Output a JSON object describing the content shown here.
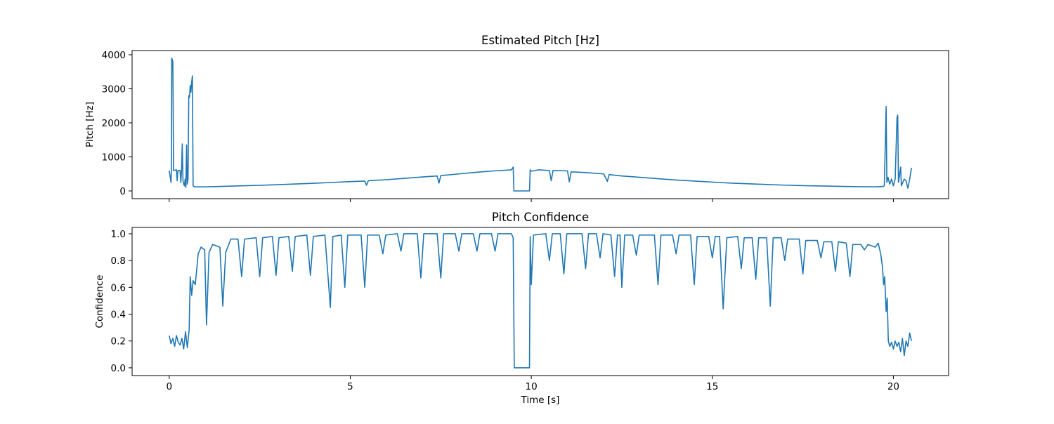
{
  "chart_data": [
    {
      "type": "line",
      "title": "Estimated Pitch [Hz]",
      "y_label": "Pitch [Hz]",
      "x": [
        0,
        0.05,
        0.06,
        0.07,
        0.1,
        0.12,
        0.2,
        0.22,
        0.24,
        0.3,
        0.32,
        0.34,
        0.36,
        0.38,
        0.4,
        0.42,
        0.44,
        0.46,
        0.48,
        0.5,
        0.52,
        0.54,
        0.56,
        0.58,
        0.6,
        0.62,
        0.64,
        0.66,
        0.7,
        1,
        1.5,
        2,
        2.5,
        3,
        3.5,
        4,
        4.5,
        5,
        5.4,
        5.45,
        5.5,
        6,
        6.5,
        7,
        7.4,
        7.45,
        7.5,
        8,
        8.5,
        9,
        9.45,
        9.5,
        9.52,
        9.95,
        9.97,
        10,
        10.2,
        10.5,
        10.55,
        10.6,
        11,
        11.05,
        11.1,
        11.5,
        12,
        12.1,
        12.15,
        12.5,
        13,
        13.5,
        14,
        14.5,
        15,
        15.5,
        16,
        16.5,
        17,
        17.5,
        18,
        18.5,
        19,
        19.5,
        19.7,
        19.75,
        19.8,
        19.82,
        19.85,
        19.9,
        19.95,
        20,
        20.05,
        20.1,
        20.12,
        20.14,
        20.2,
        20.22,
        20.3,
        20.35,
        20.4,
        20.45,
        20.5
      ],
      "series": [
        {
          "color": "#1f77b4",
          "values": [
            600,
            250,
            600,
            3900,
            3800,
            600,
            620,
            300,
            600,
            600,
            250,
            600,
            1380,
            300,
            200,
            150,
            350,
            100,
            1350,
            200,
            350,
            2800,
            2750,
            3100,
            2900,
            3200,
            3380,
            150,
            120,
            120,
            135,
            150,
            165,
            185,
            205,
            225,
            250,
            275,
            290,
            170,
            300,
            330,
            370,
            410,
            440,
            230,
            450,
            500,
            550,
            590,
            620,
            700,
            0,
            0,
            620,
            580,
            620,
            600,
            300,
            600,
            590,
            270,
            560,
            540,
            500,
            280,
            480,
            440,
            400,
            360,
            320,
            290,
            260,
            230,
            210,
            190,
            170,
            155,
            145,
            135,
            125,
            120,
            130,
            150,
            2480,
            250,
            400,
            200,
            350,
            150,
            350,
            2150,
            2230,
            250,
            700,
            150,
            350,
            300,
            80,
            350,
            680
          ]
        }
      ],
      "xlim": [
        -1.025,
        21.525
      ],
      "ylim": [
        -227,
        4124
      ],
      "yticks": [
        0,
        1000,
        2000,
        3000,
        4000
      ]
    },
    {
      "type": "line",
      "title": "Pitch Confidence",
      "y_label": "Confidence",
      "x_label": "Time [s]",
      "x": [
        0,
        0.05,
        0.1,
        0.15,
        0.2,
        0.25,
        0.3,
        0.35,
        0.4,
        0.45,
        0.5,
        0.55,
        0.58,
        0.62,
        0.66,
        0.72,
        0.8,
        0.88,
        0.98,
        1.03,
        1.1,
        1.2,
        1.4,
        1.48,
        1.56,
        1.7,
        1.9,
        2,
        2.08,
        2.4,
        2.5,
        2.58,
        2.85,
        2.95,
        3.03,
        3.3,
        3.4,
        3.48,
        3.8,
        3.9,
        3.98,
        4.3,
        4.45,
        4.52,
        4.75,
        4.85,
        4.93,
        5.3,
        5.4,
        5.48,
        5.8,
        5.9,
        5.98,
        6.3,
        6.4,
        6.48,
        6.85,
        6.95,
        7.03,
        7.4,
        7.5,
        7.58,
        7.9,
        8,
        8.08,
        8.4,
        8.5,
        8.58,
        8.9,
        9,
        9.08,
        9.45,
        9.5,
        9.53,
        9.95,
        9.97,
        10,
        10.06,
        10.4,
        10.5,
        10.58,
        10.8,
        10.9,
        10.98,
        11.4,
        11.5,
        11.58,
        11.8,
        11.9,
        11.98,
        12.2,
        12.3,
        12.38,
        12.45,
        12.5,
        12.58,
        12.8,
        12.9,
        12.98,
        13.4,
        13.5,
        13.58,
        13.9,
        14,
        14.08,
        14.4,
        14.5,
        14.58,
        14.9,
        15,
        15.08,
        15.2,
        15.3,
        15.4,
        15.7,
        15.8,
        15.88,
        16.1,
        16.2,
        16.28,
        16.5,
        16.6,
        16.68,
        16.9,
        17,
        17.08,
        17.4,
        17.5,
        17.58,
        17.9,
        18,
        18.08,
        18.3,
        18.4,
        18.48,
        18.7,
        18.8,
        18.88,
        19.1,
        19.2,
        19.3,
        19.5,
        19.58,
        19.65,
        19.7,
        19.73,
        19.76,
        19.8,
        19.83,
        19.86,
        19.9,
        19.95,
        20,
        20.05,
        20.1,
        20.15,
        20.2,
        20.25,
        20.3,
        20.35,
        20.4,
        20.45,
        20.5
      ],
      "series": [
        {
          "color": "#1f77b4",
          "values": [
            0.24,
            0.18,
            0.22,
            0.16,
            0.24,
            0.19,
            0.17,
            0.22,
            0.14,
            0.27,
            0.15,
            0.28,
            0.68,
            0.54,
            0.65,
            0.62,
            0.85,
            0.9,
            0.88,
            0.32,
            0.86,
            0.92,
            0.9,
            0.46,
            0.86,
            0.96,
            0.96,
            0.68,
            0.96,
            0.97,
            0.68,
            0.97,
            0.98,
            0.69,
            0.97,
            0.98,
            0.72,
            0.98,
            0.99,
            0.69,
            0.98,
            0.99,
            0.45,
            0.98,
            0.99,
            0.6,
            0.99,
            0.99,
            0.6,
            0.99,
            0.99,
            0.85,
            0.99,
            1,
            0.87,
            1,
            1,
            0.67,
            1,
            1,
            0.67,
            1,
            1,
            0.87,
            1,
            1,
            0.87,
            1,
            1,
            0.87,
            1,
            1,
            0.97,
            0,
            0,
            0.98,
            0.62,
            0.99,
            1,
            0.8,
            1,
            1,
            0.7,
            1,
            1,
            0.74,
            1,
            1,
            0.82,
            1,
            0.99,
            0.68,
            0.99,
            0.99,
            0.6,
            0.99,
            0.99,
            0.84,
            0.99,
            0.99,
            0.62,
            0.99,
            0.99,
            0.85,
            0.99,
            0.99,
            0.62,
            0.98,
            0.98,
            0.82,
            0.98,
            0.98,
            0.44,
            0.97,
            0.98,
            0.74,
            0.97,
            0.97,
            0.66,
            0.97,
            0.97,
            0.46,
            0.97,
            0.97,
            0.8,
            0.96,
            0.96,
            0.7,
            0.95,
            0.95,
            0.82,
            0.94,
            0.94,
            0.72,
            0.94,
            0.93,
            0.68,
            0.92,
            0.92,
            0.88,
            0.92,
            0.9,
            0.93,
            0.85,
            0.75,
            0.62,
            0.68,
            0.42,
            0.52,
            0.2,
            0.16,
            0.19,
            0.14,
            0.2,
            0.16,
            0.19,
            0.12,
            0.22,
            0.09,
            0.2,
            0.16,
            0.26,
            0.2
          ]
        }
      ],
      "xlim": [
        -1.025,
        21.525
      ],
      "ylim": [
        -0.058,
        1.047
      ],
      "xticks": [
        0,
        5,
        10,
        15,
        20
      ],
      "yticks": [
        {
          "value": 0,
          "label": "0.0"
        },
        0.2,
        0.4,
        0.6,
        0.8,
        {
          "value": 1,
          "label": "1.0"
        }
      ]
    }
  ]
}
